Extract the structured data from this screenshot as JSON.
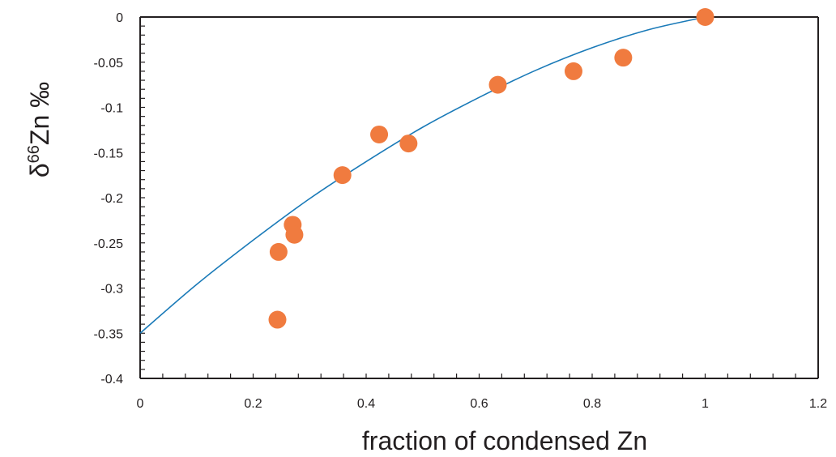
{
  "chart_data": {
    "type": "scatter",
    "title": "",
    "xlabel": "fraction of condensed Zn",
    "ylabel": {
      "prefix": "δ",
      "sup": "66",
      "rest": "Zn ‰"
    },
    "xlim": [
      0,
      1.2
    ],
    "ylim": [
      -0.4,
      0
    ],
    "x_ticks": [
      0,
      0.2,
      0.4,
      0.6,
      0.8,
      1,
      1.2
    ],
    "x_tick_labels": [
      "0",
      "0.2",
      "0.4",
      "0.6",
      "0.8",
      "1",
      "1.2"
    ],
    "y_ticks": [
      0,
      -0.05,
      -0.1,
      -0.15,
      -0.2,
      -0.25,
      -0.3,
      -0.35,
      -0.4
    ],
    "y_tick_labels": [
      "0",
      "-0.05",
      "-0.1",
      "-0.15",
      "-0.2",
      "-0.25",
      "-0.3",
      "-0.35",
      "-0.4"
    ],
    "grid": false,
    "series": [
      {
        "kind": "points",
        "color": "#f07b3f",
        "points": [
          {
            "x": 0.243,
            "y": -0.335
          },
          {
            "x": 0.245,
            "y": -0.26
          },
          {
            "x": 0.27,
            "y": -0.23
          },
          {
            "x": 0.273,
            "y": -0.241
          },
          {
            "x": 0.358,
            "y": -0.175
          },
          {
            "x": 0.423,
            "y": -0.13
          },
          {
            "x": 0.475,
            "y": -0.14
          },
          {
            "x": 0.633,
            "y": -0.075
          },
          {
            "x": 0.767,
            "y": -0.06
          },
          {
            "x": 0.855,
            "y": -0.045
          },
          {
            "x": 1.0,
            "y": 0.0
          }
        ]
      },
      {
        "kind": "curve",
        "color": "#1a7ab8",
        "points": [
          {
            "x": 0.0,
            "y": -0.35
          },
          {
            "x": 0.1,
            "y": -0.296
          },
          {
            "x": 0.2,
            "y": -0.247
          },
          {
            "x": 0.3,
            "y": -0.201
          },
          {
            "x": 0.4,
            "y": -0.16
          },
          {
            "x": 0.5,
            "y": -0.122
          },
          {
            "x": 0.6,
            "y": -0.089
          },
          {
            "x": 0.7,
            "y": -0.059
          },
          {
            "x": 0.8,
            "y": -0.034
          },
          {
            "x": 0.9,
            "y": -0.014
          },
          {
            "x": 1.0,
            "y": 0.0
          }
        ]
      }
    ]
  }
}
